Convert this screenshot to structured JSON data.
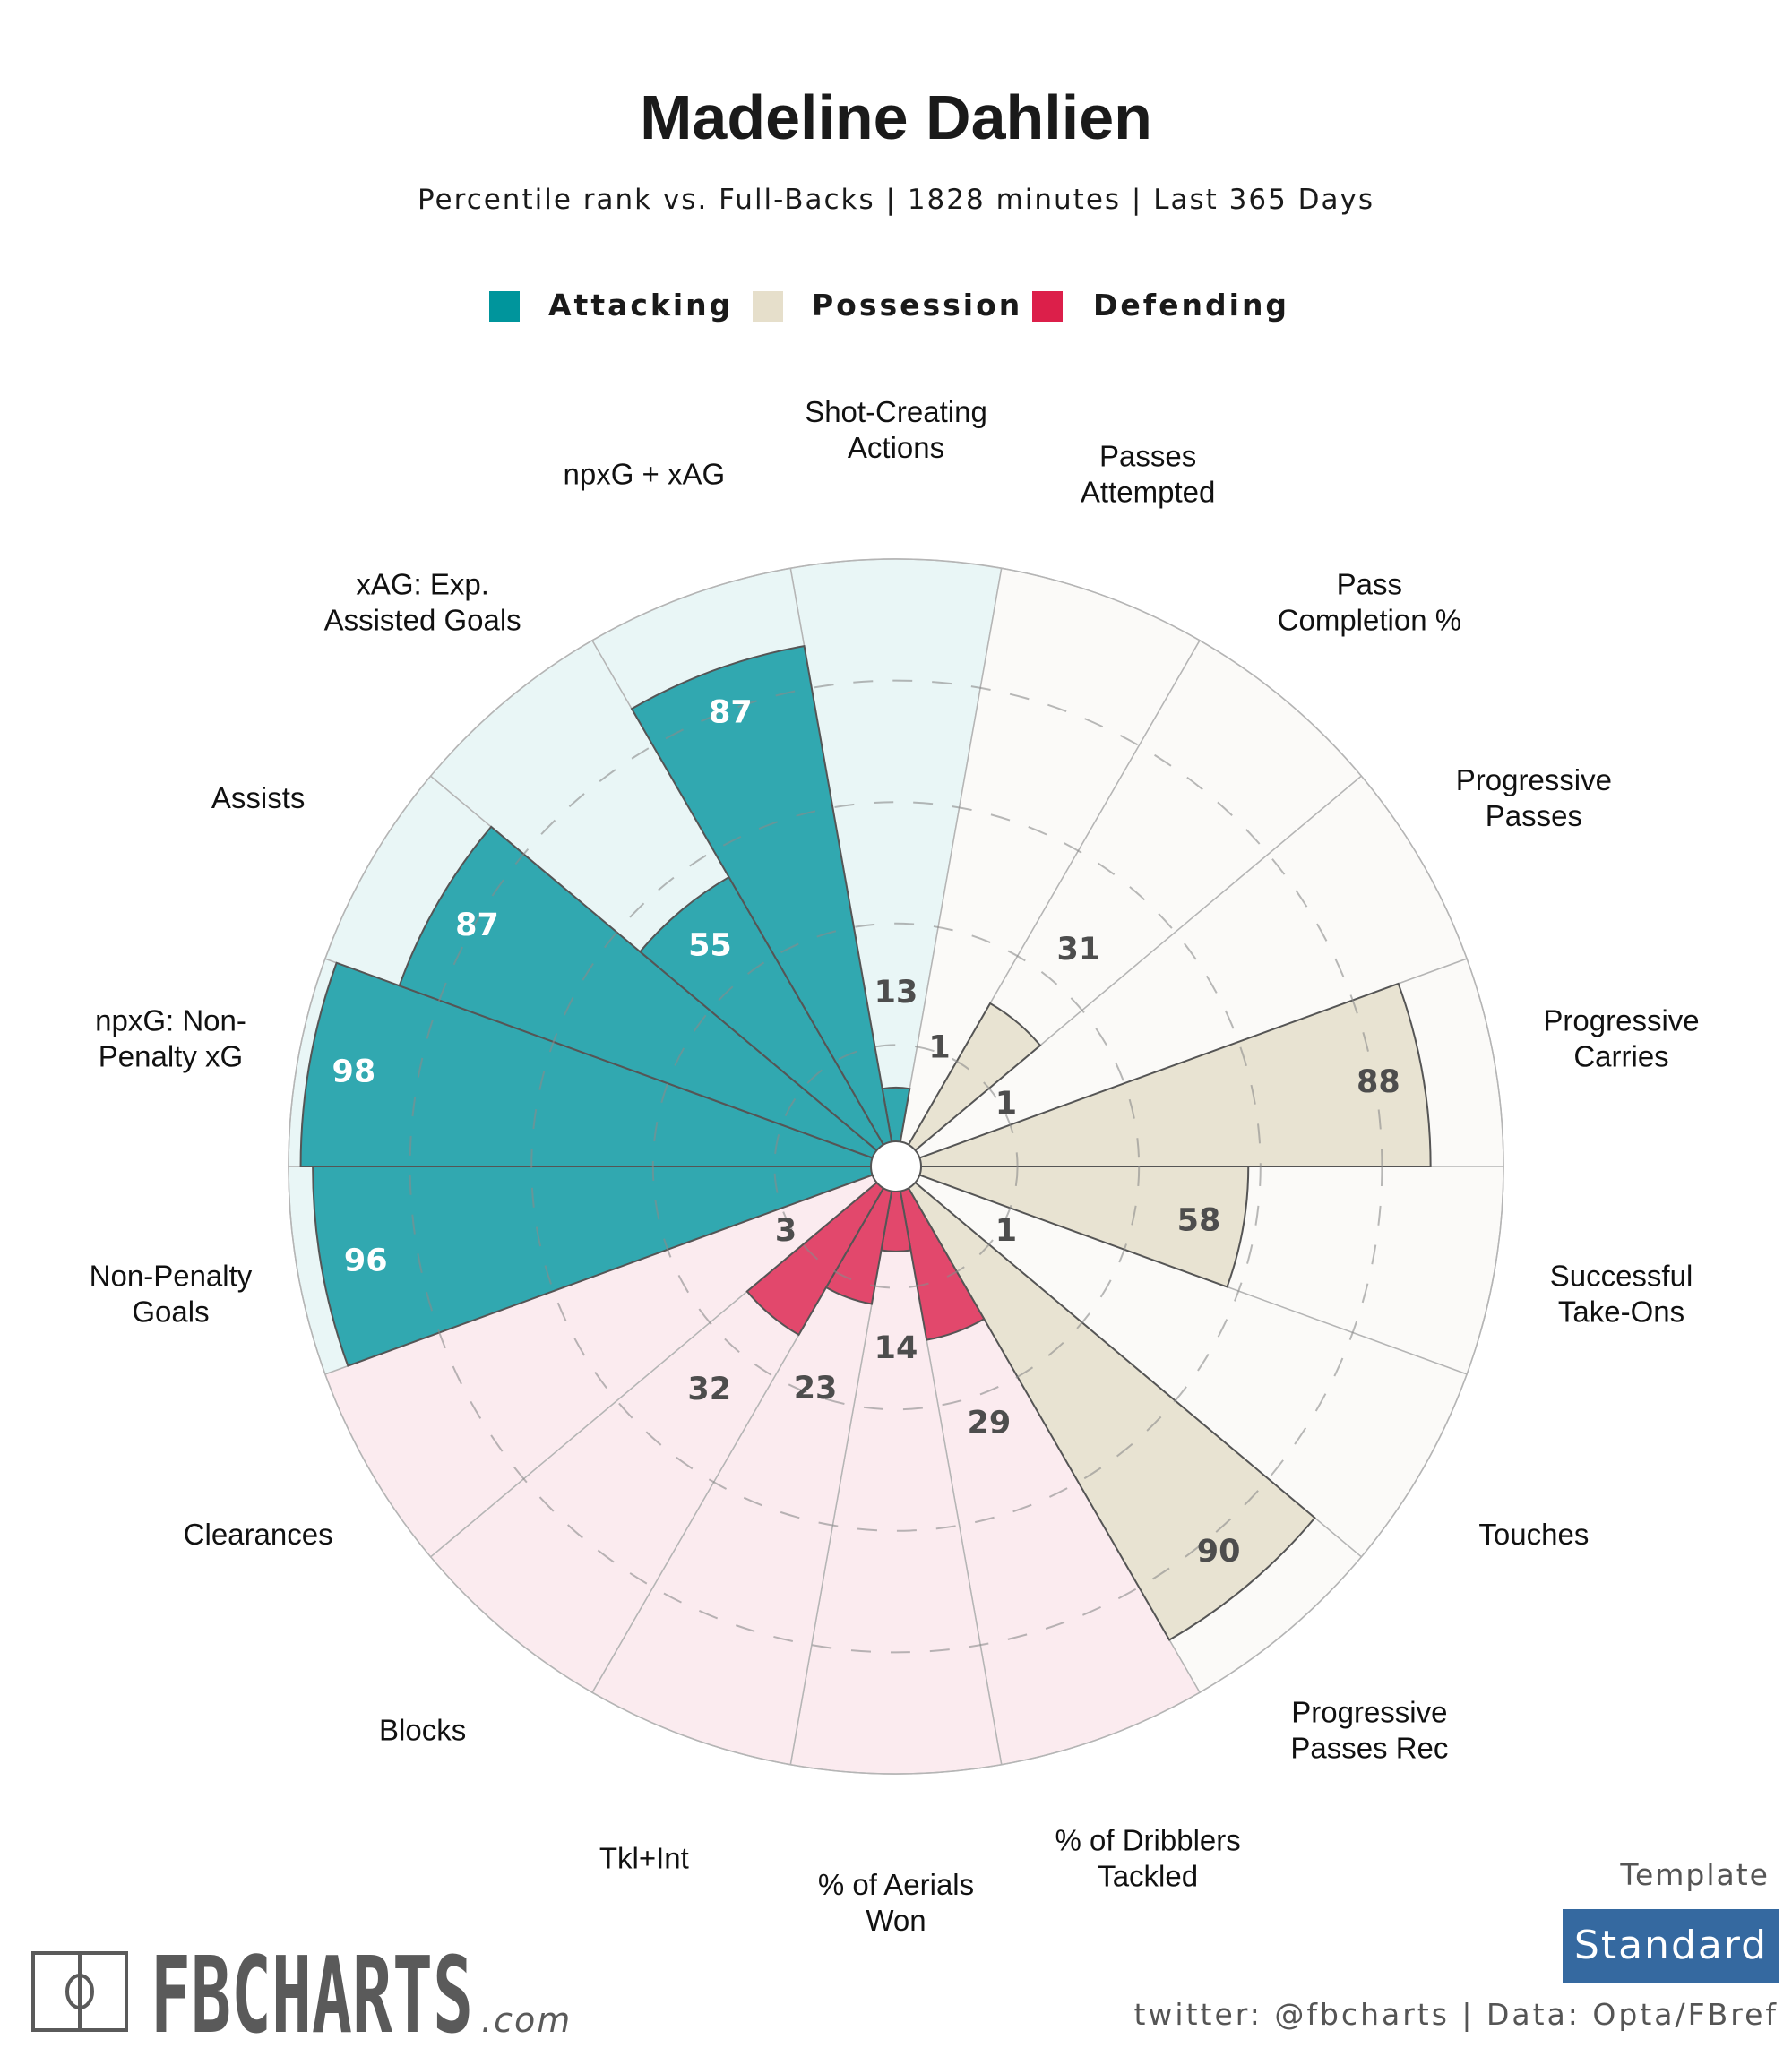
{
  "header": {
    "title": "Madeline Dahlien",
    "subtitle": "Percentile rank vs. Full-Backs | 1828 minutes | Last 365 Days"
  },
  "legend": [
    {
      "label": "Attacking",
      "color": "#00959c"
    },
    {
      "label": "Possession",
      "color": "#e6dfcb"
    },
    {
      "label": "Defending",
      "color": "#dc1f4a"
    }
  ],
  "colors": {
    "attacking_bar": "#31a8b0",
    "attacking_bg": "#e9f6f6",
    "possession_bar": "#e8e3d2",
    "possession_bg": "#fbfaf8",
    "defending_bar": "#e2486c",
    "defending_bg": "#fbebef",
    "value_dark": "#4d4d4d",
    "value_light": "#ffffff",
    "template_box": "#3569a0"
  },
  "chart_data": {
    "type": "polar-bar",
    "title": "Madeline Dahlien",
    "subtitle": "Percentile rank vs. Full-Backs | 1828 minutes | Last 365 Days",
    "value_range": [
      0,
      100
    ],
    "gridlines": [
      20,
      40,
      60,
      80
    ],
    "start": "top",
    "direction": "clockwise",
    "categories": [
      {
        "label": [
          "Shot-Creating",
          "Actions"
        ],
        "group": "Attacking",
        "value": 13
      },
      {
        "label": [
          "Passes",
          "Attempted"
        ],
        "group": "Possession",
        "value": 1
      },
      {
        "label": [
          "Pass",
          "Completion %"
        ],
        "group": "Possession",
        "value": 31
      },
      {
        "label": [
          "Progressive",
          "Passes"
        ],
        "group": "Possession",
        "value": 1
      },
      {
        "label": [
          "Progressive",
          "Carries"
        ],
        "group": "Possession",
        "value": 88
      },
      {
        "label": [
          "Successful",
          "Take-Ons"
        ],
        "group": "Possession",
        "value": 58
      },
      {
        "label": [
          "Touches"
        ],
        "group": "Possession",
        "value": 1
      },
      {
        "label": [
          "Progressive",
          "Passes Rec"
        ],
        "group": "Possession",
        "value": 90
      },
      {
        "label": [
          "% of Dribblers",
          "Tackled"
        ],
        "group": "Defending",
        "value": 29
      },
      {
        "label": [
          "% of Aerials",
          "Won"
        ],
        "group": "Defending",
        "value": 14
      },
      {
        "label": [
          "Tkl+Int"
        ],
        "group": "Defending",
        "value": 23
      },
      {
        "label": [
          "Blocks"
        ],
        "group": "Defending",
        "value": 32
      },
      {
        "label": [
          "Clearances"
        ],
        "group": "Defending",
        "value": 3
      },
      {
        "label": [
          "Non-Penalty",
          "Goals"
        ],
        "group": "Attacking",
        "value": 96
      },
      {
        "label": [
          "npxG: Non-",
          "Penalty xG"
        ],
        "group": "Attacking",
        "value": 98
      },
      {
        "label": [
          "Assists"
        ],
        "group": "Attacking",
        "value": 87
      },
      {
        "label": [
          "xAG: Exp.",
          "Assisted Goals"
        ],
        "group": "Attacking",
        "value": 55
      },
      {
        "label": [
          "npxG + xAG"
        ],
        "group": "Attacking",
        "value": 87
      }
    ]
  },
  "footer": {
    "logo_text": "FBCHARTS",
    "logo_suffix": ".com",
    "template_label": "Template",
    "template_value": "Standard",
    "credits": "twitter: @fbcharts | Data: Opta/FBref"
  }
}
